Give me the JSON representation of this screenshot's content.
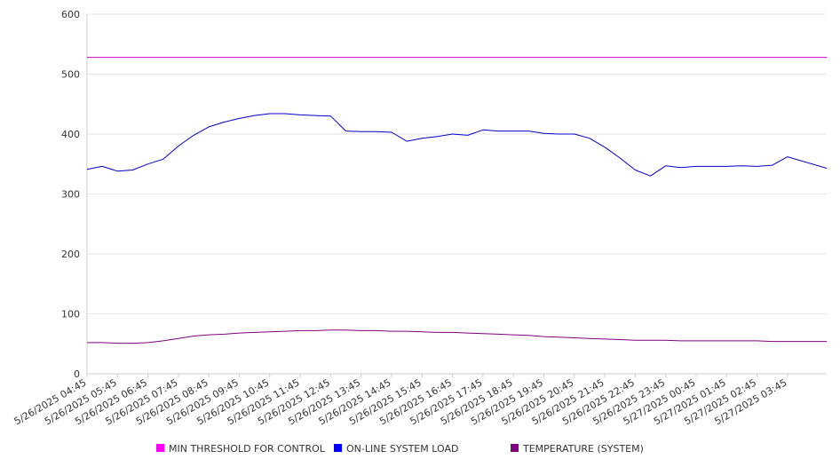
{
  "chart_data": {
    "type": "line",
    "title": "",
    "xlabel": "",
    "ylabel": "",
    "ylim": [
      0,
      600
    ],
    "yticks": [
      0,
      100,
      200,
      300,
      400,
      500,
      600
    ],
    "grid": true,
    "legend_position": "bottom",
    "x_tick_labels": [
      "5/26/2025 04:45",
      "5/26/2025 05:45",
      "5/26/2025 06:45",
      "5/26/2025 07:45",
      "5/26/2025 08:45",
      "5/26/2025 09:45",
      "5/26/2025 10:45",
      "5/26/2025 11:45",
      "5/26/2025 12:45",
      "5/26/2025 13:45",
      "5/26/2025 14:45",
      "5/26/2025 15:45",
      "5/26/2025 16:45",
      "5/26/2025 17:45",
      "5/26/2025 18:45",
      "5/26/2025 19:45",
      "5/26/2025 20:45",
      "5/26/2025 21:45",
      "5/26/2025 22:45",
      "5/26/2025 23:45",
      "5/27/2025 00:45",
      "5/27/2025 01:45",
      "5/27/2025 02:45",
      "5/27/2025 03:45"
    ],
    "x": [
      "5/26/2025 04:45",
      "5/26/2025 05:15",
      "5/26/2025 05:45",
      "5/26/2025 06:15",
      "5/26/2025 06:45",
      "5/26/2025 07:15",
      "5/26/2025 07:45",
      "5/26/2025 08:15",
      "5/26/2025 08:45",
      "5/26/2025 09:15",
      "5/26/2025 09:45",
      "5/26/2025 10:15",
      "5/26/2025 10:45",
      "5/26/2025 11:15",
      "5/26/2025 11:45",
      "5/26/2025 12:15",
      "5/26/2025 12:45",
      "5/26/2025 13:15",
      "5/26/2025 13:45",
      "5/26/2025 14:15",
      "5/26/2025 14:45",
      "5/26/2025 15:15",
      "5/26/2025 15:45",
      "5/26/2025 16:15",
      "5/26/2025 16:45",
      "5/26/2025 17:15",
      "5/26/2025 17:45",
      "5/26/2025 18:15",
      "5/26/2025 18:45",
      "5/26/2025 19:15",
      "5/26/2025 19:45",
      "5/26/2025 20:15",
      "5/26/2025 20:45",
      "5/26/2025 21:15",
      "5/26/2025 21:45",
      "5/26/2025 22:15",
      "5/26/2025 22:45",
      "5/26/2025 23:15",
      "5/26/2025 23:45",
      "5/27/2025 00:15",
      "5/27/2025 00:45",
      "5/27/2025 01:15",
      "5/27/2025 01:45",
      "5/27/2025 02:15",
      "5/27/2025 02:45",
      "5/27/2025 03:15",
      "5/27/2025 03:45",
      "5/27/2025 04:15"
    ],
    "series": [
      {
        "name": "MIN THRESHOLD FOR CONTROL",
        "color": "#cc00cc",
        "legend_color": "#ff00ff",
        "values": [
          528,
          528,
          528,
          528,
          528,
          528,
          528,
          528,
          528,
          528,
          528,
          528,
          528,
          528,
          528,
          528,
          528,
          528,
          528,
          528,
          528,
          528,
          528,
          528,
          528,
          528,
          528,
          528,
          528,
          528,
          528,
          528,
          528,
          528,
          528,
          528,
          528,
          528,
          528,
          528,
          528,
          528,
          528,
          528,
          528,
          528,
          528,
          528
        ]
      },
      {
        "name": "ON-LINE SYSTEM LOAD",
        "color": "#0000cc",
        "legend_color": "#0000ff",
        "values": [
          341,
          346,
          338,
          340,
          350,
          358,
          380,
          398,
          412,
          420,
          426,
          431,
          434,
          434,
          432,
          431,
          430,
          405,
          404,
          404,
          403,
          388,
          393,
          396,
          400,
          398,
          407,
          405,
          405,
          405,
          401,
          400,
          400,
          393,
          378,
          360,
          340,
          330,
          347,
          344,
          346,
          346,
          346,
          347,
          346,
          348,
          362,
          343
        ]
      },
      {
        "name": "TEMPERATURE (SYSTEM)",
        "color": "#800080",
        "legend_color": "#800080",
        "values": [
          52,
          52,
          51,
          51,
          52,
          55,
          59,
          63,
          65,
          66,
          68,
          69,
          70,
          71,
          72,
          72,
          73,
          73,
          72,
          72,
          71,
          71,
          70,
          69,
          69,
          68,
          67,
          66,
          65,
          64,
          62,
          61,
          60,
          59,
          58,
          57,
          56,
          56,
          56,
          55,
          55,
          55,
          55,
          55,
          55,
          54,
          54,
          54
        ]
      }
    ]
  }
}
